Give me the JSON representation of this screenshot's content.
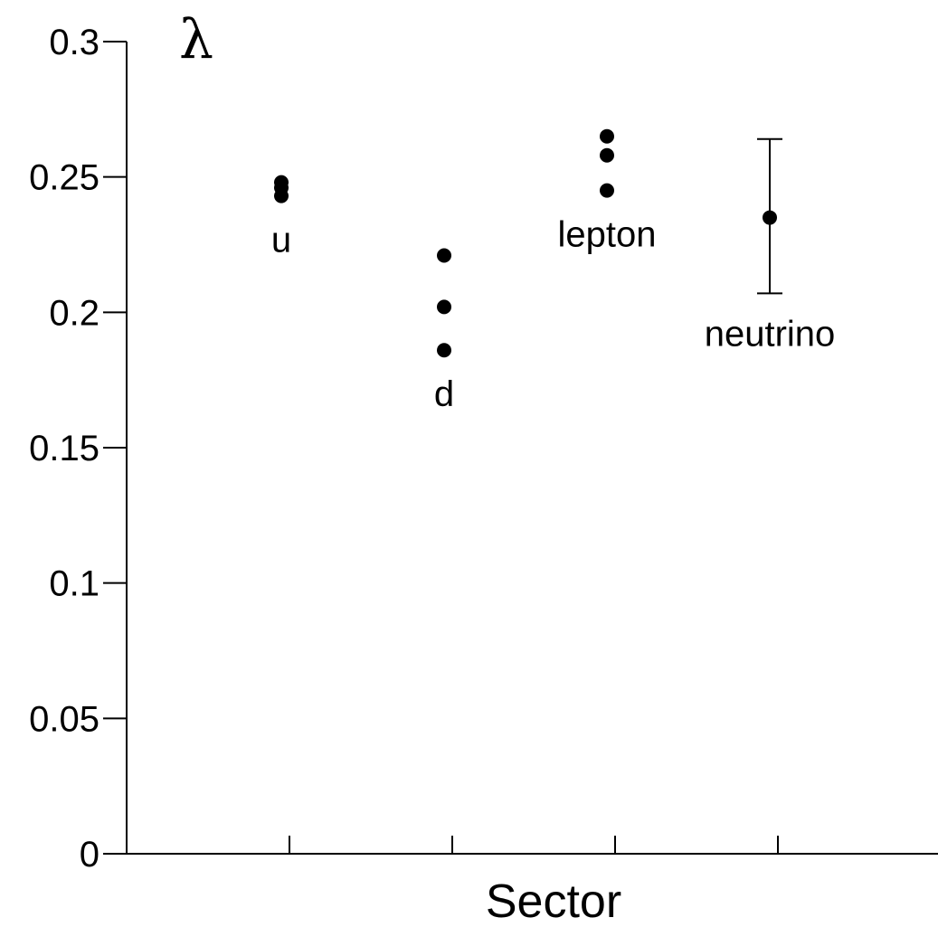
{
  "chart_data": {
    "type": "scatter",
    "xlabel": "Sector",
    "ylabel": "λ",
    "ylim": [
      0,
      0.3
    ],
    "y_ticks": [
      "0",
      "0.05",
      "0.1",
      "0.15",
      "0.2",
      "0.25",
      "0.3"
    ],
    "y_tick_values": [
      0,
      0.05,
      0.1,
      0.15,
      0.2,
      0.25,
      0.3
    ],
    "grid": false,
    "sectors": [
      {
        "label": "u",
        "x": 1,
        "values": [
          0.248,
          0.246,
          0.243
        ]
      },
      {
        "label": "d",
        "x": 2,
        "values": [
          0.221,
          0.202,
          0.186
        ]
      },
      {
        "label": "lepton",
        "x": 3,
        "values": [
          0.265,
          0.258,
          0.245
        ]
      },
      {
        "label": "neutrino",
        "x": 4,
        "values": [
          0.235
        ],
        "error_low": 0.207,
        "error_high": 0.264
      }
    ]
  }
}
